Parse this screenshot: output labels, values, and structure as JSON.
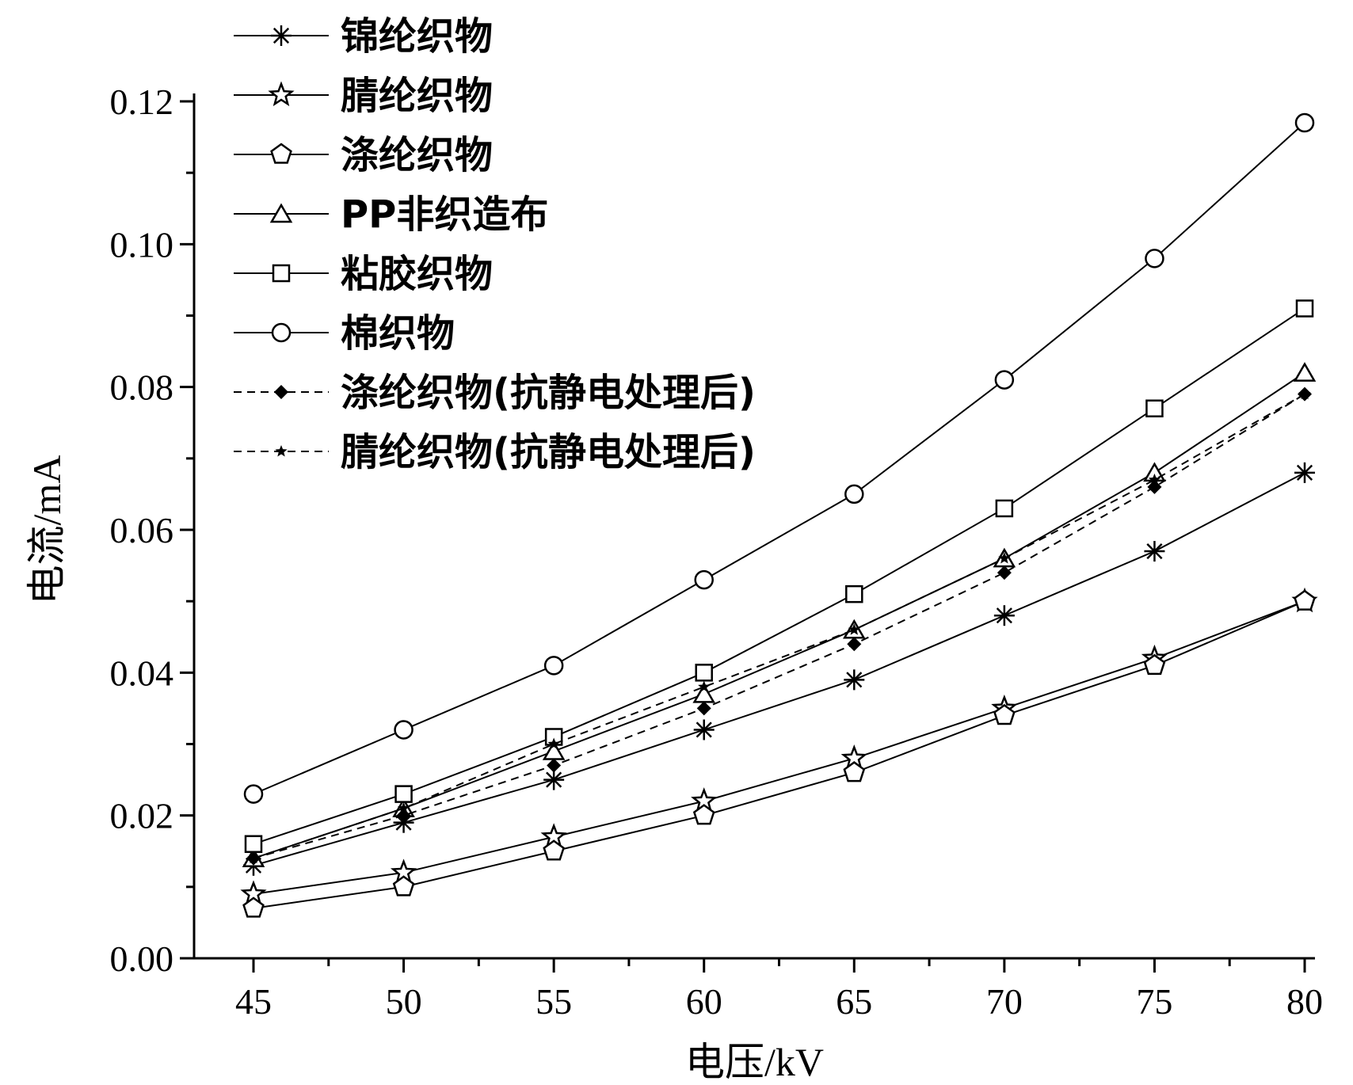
{
  "chart_data": {
    "type": "line",
    "xlabel": "电压/kV",
    "ylabel": "电流/mA",
    "xlim": [
      45,
      80
    ],
    "ylim": [
      0,
      0.12
    ],
    "x_ticks": [
      "45",
      "50",
      "55",
      "60",
      "65",
      "70",
      "75",
      "80"
    ],
    "y_ticks": [
      "0.00",
      "0.02",
      "0.04",
      "0.06",
      "0.08",
      "0.10",
      "0.12"
    ],
    "grid": false,
    "legend_position": "top-left",
    "x": [
      45,
      50,
      55,
      60,
      65,
      70,
      75,
      80
    ],
    "series": [
      {
        "name": "锦纶织物",
        "marker": "asterisk",
        "dash": "solid",
        "values": [
          0.013,
          0.019,
          0.025,
          0.032,
          0.039,
          0.048,
          0.057,
          0.068
        ]
      },
      {
        "name": "腈纶织物",
        "marker": "star-open",
        "dash": "solid",
        "values": [
          0.009,
          0.012,
          0.017,
          0.022,
          0.028,
          0.035,
          0.042,
          0.05
        ]
      },
      {
        "name": "涤纶织物",
        "marker": "pentagon-open",
        "dash": "solid",
        "values": [
          0.007,
          0.01,
          0.015,
          0.02,
          0.026,
          0.034,
          0.041,
          0.05
        ]
      },
      {
        "name": "PP非织造布",
        "marker": "triangle-open",
        "dash": "solid",
        "values": [
          0.014,
          0.021,
          0.029,
          0.037,
          0.046,
          0.056,
          0.068,
          0.082
        ]
      },
      {
        "name": "粘胶织物",
        "marker": "square-open",
        "dash": "solid",
        "values": [
          0.016,
          0.023,
          0.031,
          0.04,
          0.051,
          0.063,
          0.077,
          0.091
        ]
      },
      {
        "name": "棉织物",
        "marker": "circle-open",
        "dash": "solid",
        "values": [
          0.023,
          0.032,
          0.041,
          0.053,
          0.065,
          0.081,
          0.098,
          0.117
        ]
      },
      {
        "name": "涤纶织物(抗静电处理后)",
        "marker": "diamond-filled",
        "dash": "dashed",
        "values": [
          0.014,
          0.02,
          0.027,
          0.035,
          0.044,
          0.054,
          0.066,
          0.079
        ]
      },
      {
        "name": "腈纶织物(抗静电处理后)",
        "marker": "star-filled",
        "dash": "dashed",
        "values": [
          0.014,
          0.021,
          0.03,
          0.038,
          0.046,
          0.056,
          0.067,
          0.079
        ]
      }
    ]
  }
}
